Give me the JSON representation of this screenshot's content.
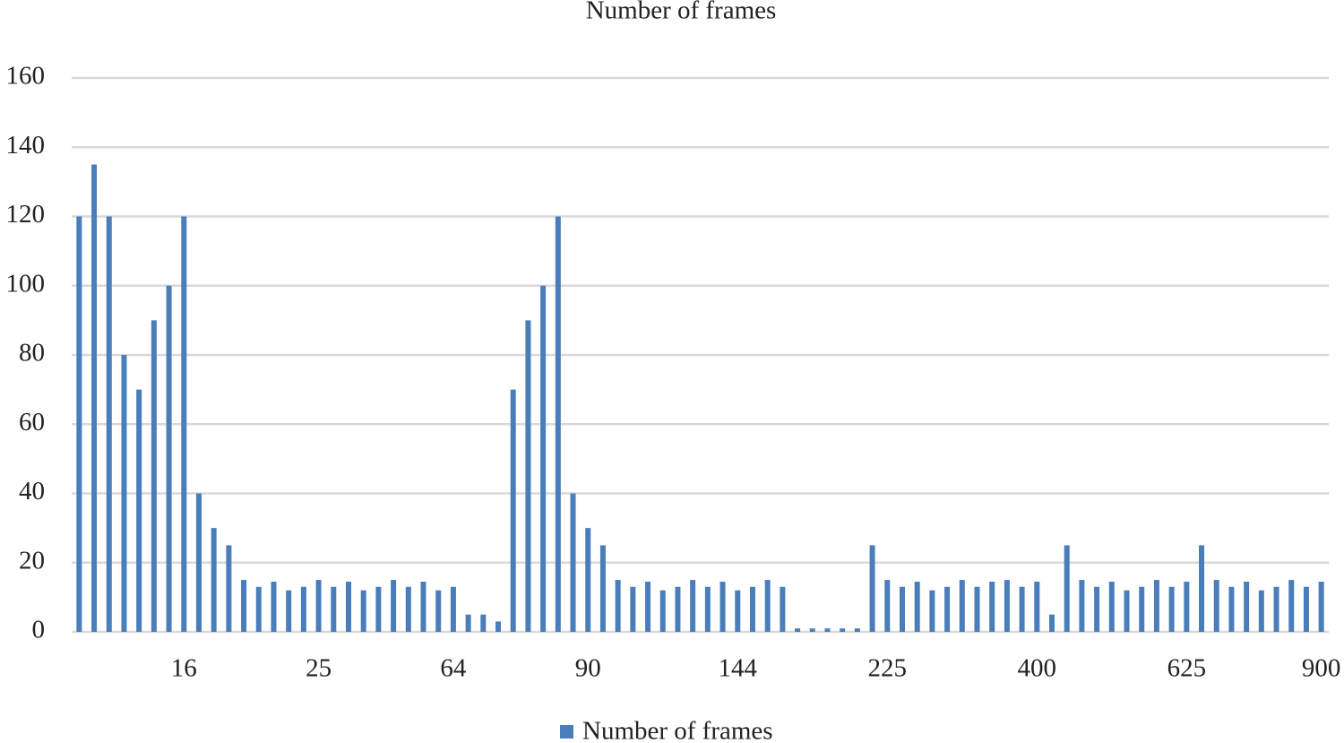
{
  "chart_data": {
    "type": "bar",
    "title": "Number of frames",
    "categories": [
      null,
      null,
      null,
      null,
      null,
      null,
      null,
      "16",
      null,
      null,
      null,
      null,
      null,
      null,
      null,
      null,
      "25",
      null,
      null,
      null,
      null,
      null,
      null,
      null,
      null,
      "64",
      null,
      null,
      null,
      null,
      null,
      null,
      null,
      null,
      "90",
      null,
      null,
      null,
      null,
      null,
      null,
      null,
      null,
      null,
      "144",
      null,
      null,
      null,
      null,
      null,
      null,
      null,
      null,
      null,
      "225",
      null,
      null,
      null,
      null,
      null,
      null,
      null,
      null,
      null,
      "400",
      null,
      null,
      null,
      null,
      null,
      null,
      null,
      null,
      null,
      "625",
      null,
      null,
      null,
      null,
      null,
      null,
      null,
      null,
      "900"
    ],
    "series": [
      {
        "name": "Number of frames",
        "color": "#4a7ebb",
        "values": [
          120,
          135,
          120,
          80,
          70,
          90,
          100,
          120,
          40,
          30,
          25,
          15,
          13,
          14.5,
          12,
          13,
          15,
          13,
          14.5,
          12,
          13,
          15,
          13,
          14.5,
          12,
          13,
          5,
          5,
          3,
          70,
          90,
          100,
          120,
          40,
          30,
          25,
          15,
          13,
          14.5,
          12,
          13,
          15,
          13,
          14.5,
          12,
          13,
          15,
          13,
          1,
          1,
          1,
          1,
          1,
          25,
          15,
          13,
          14.5,
          12,
          13,
          15,
          13,
          14.5,
          15,
          13,
          14.5,
          5,
          25,
          15,
          13,
          14.5,
          12,
          13,
          15,
          13,
          14.5,
          25,
          15,
          13,
          14.5,
          12,
          13,
          15,
          13,
          14.5
        ]
      }
    ],
    "ylim": [
      0,
      160
    ],
    "yticks": [
      0,
      20,
      40,
      60,
      80,
      100,
      120,
      140,
      160
    ],
    "grid": true,
    "legend": "bottom"
  }
}
